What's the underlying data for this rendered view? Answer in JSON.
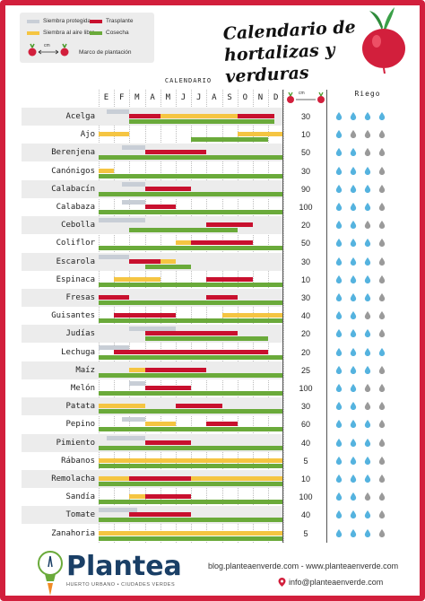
{
  "title_line1": "Calendario de",
  "title_line2": "hortalizas y verduras",
  "legend": {
    "items": [
      {
        "label": "Siembra protegida",
        "color": "#c8ced6"
      },
      {
        "label": "Trasplante",
        "color": "#c8102e"
      },
      {
        "label": "Siembra al aire libre",
        "color": "#f5c542"
      },
      {
        "label": "Cosecha",
        "color": "#6aaa3a"
      }
    ],
    "cm_label": "cm",
    "spacing_label": "Marco de plantación"
  },
  "calendar_label": "CALENDARIO",
  "riego_label": "Riego",
  "distance_header": "cm",
  "months": [
    "E",
    "F",
    "M",
    "A",
    "M",
    "J",
    "J",
    "A",
    "S",
    "O",
    "N",
    "D"
  ],
  "crops": [
    {
      "name": "Acelga",
      "distance": "30",
      "water": 4
    },
    {
      "name": "Ajo",
      "distance": "10",
      "water": 1
    },
    {
      "name": "Berenjena",
      "distance": "50",
      "water": 2
    },
    {
      "name": "Canónigos",
      "distance": "30",
      "water": 3
    },
    {
      "name": "Calabacín",
      "distance": "90",
      "water": 3
    },
    {
      "name": "Calabaza",
      "distance": "100",
      "water": 3
    },
    {
      "name": "Cebolla",
      "distance": "20",
      "water": 2
    },
    {
      "name": "Coliflor",
      "distance": "50",
      "water": 3
    },
    {
      "name": "Escarola",
      "distance": "30",
      "water": 3
    },
    {
      "name": "Espinaca",
      "distance": "10",
      "water": 3
    },
    {
      "name": "Fresas",
      "distance": "30",
      "water": 3
    },
    {
      "name": "Guisantes",
      "distance": "40",
      "water": 2
    },
    {
      "name": "Judías",
      "distance": "20",
      "water": 3
    },
    {
      "name": "Lechuga",
      "distance": "20",
      "water": 4
    },
    {
      "name": "Maíz",
      "distance": "25",
      "water": 3
    },
    {
      "name": "Melón",
      "distance": "100",
      "water": 2
    },
    {
      "name": "Patata",
      "distance": "30",
      "water": 2
    },
    {
      "name": "Pepino",
      "distance": "60",
      "water": 3
    },
    {
      "name": "Pimiento",
      "distance": "40",
      "water": 3
    },
    {
      "name": "Rábanos",
      "distance": "5",
      "water": 3
    },
    {
      "name": "Remolacha",
      "distance": "10",
      "water": 3
    },
    {
      "name": "Sandía",
      "distance": "100",
      "water": 2
    },
    {
      "name": "Tomate",
      "distance": "40",
      "water": 3
    },
    {
      "name": "Zanahoria",
      "distance": "5",
      "water": 3
    }
  ],
  "footer": {
    "brand": "Plantea",
    "tagline": "HUERTO URBANO • CIUDADES VERDES",
    "urls": "blog.planteaenverde.com - www.planteaenverde.com",
    "email": "info@planteaenverde.com"
  },
  "colors": {
    "border": "#d21f3c",
    "drop_full": "#55b3df",
    "drop_empty": "#9a9a9a",
    "row_alt": "#ececec"
  }
}
